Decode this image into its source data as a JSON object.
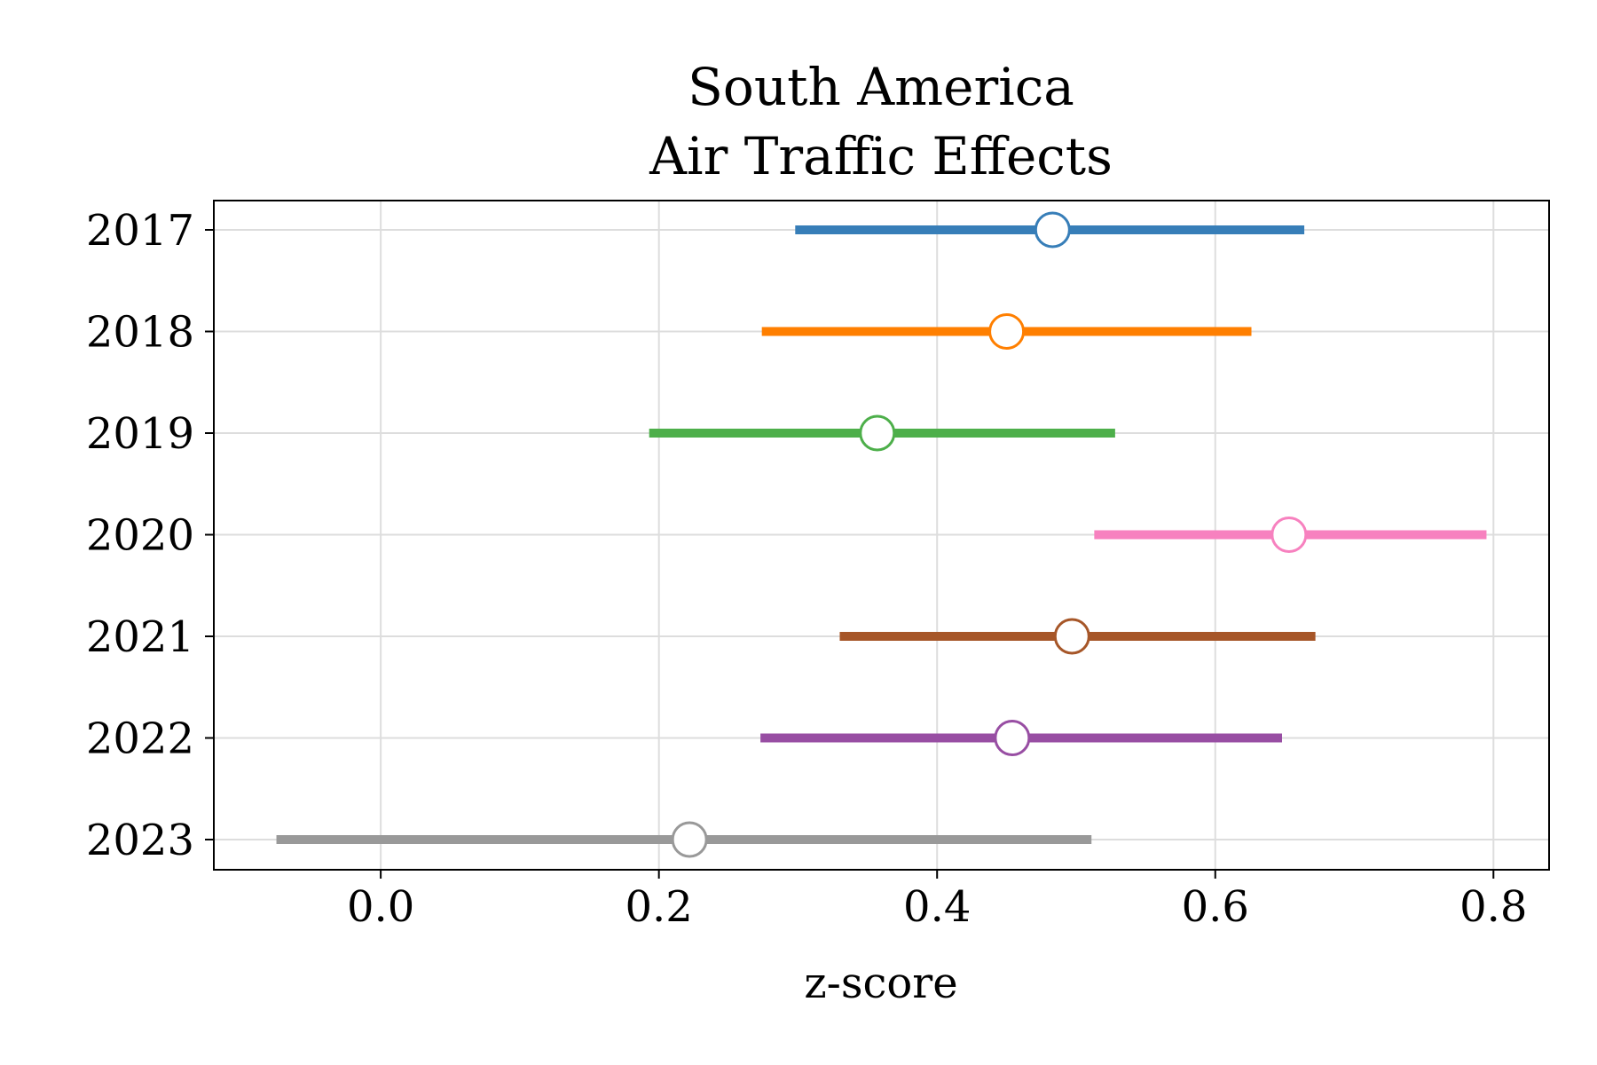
{
  "chart_data": {
    "type": "scatter",
    "title_lines": [
      "South America",
      "Air Traffic Effects"
    ],
    "xlabel": "z-score",
    "ylabel": "",
    "xlim": [
      -0.12,
      0.84
    ],
    "xticks": [
      0.0,
      0.2,
      0.4,
      0.6,
      0.8
    ],
    "xtick_labels": [
      "0.0",
      "0.2",
      "0.4",
      "0.6",
      "0.8"
    ],
    "grid": true,
    "categories": [
      "2017",
      "2018",
      "2019",
      "2020",
      "2021",
      "2022",
      "2023"
    ],
    "series": [
      {
        "category": "2017",
        "estimate": 0.483,
        "low": 0.298,
        "high": 0.664,
        "color": "#377eb8"
      },
      {
        "category": "2018",
        "estimate": 0.45,
        "low": 0.274,
        "high": 0.626,
        "color": "#ff7f00"
      },
      {
        "category": "2019",
        "estimate": 0.357,
        "low": 0.193,
        "high": 0.528,
        "color": "#4daf4a"
      },
      {
        "category": "2020",
        "estimate": 0.653,
        "low": 0.513,
        "high": 0.795,
        "color": "#f781bf"
      },
      {
        "category": "2021",
        "estimate": 0.497,
        "low": 0.33,
        "high": 0.672,
        "color": "#a65628"
      },
      {
        "category": "2022",
        "estimate": 0.454,
        "low": 0.273,
        "high": 0.648,
        "color": "#984ea3"
      },
      {
        "category": "2023",
        "estimate": 0.222,
        "low": -0.075,
        "high": 0.511,
        "color": "#999999"
      }
    ]
  }
}
